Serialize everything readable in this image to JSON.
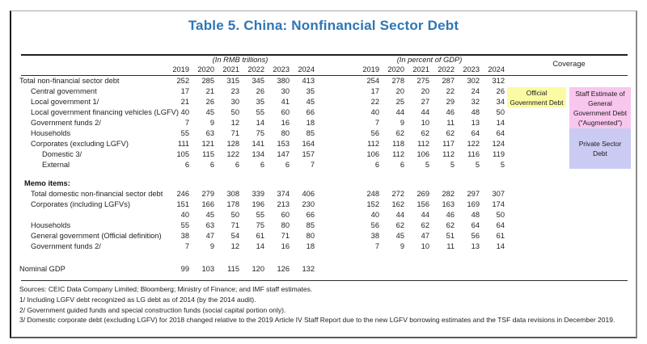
{
  "title": "Table 5. China: Nonfinancial Sector Debt",
  "header": {
    "group_rmb": "(In RMB trillions)",
    "group_gdp": "(In percent of GDP)",
    "coverage": "Coverage",
    "years": [
      "2019",
      "2020",
      "2021",
      "2022",
      "2023",
      "2024"
    ]
  },
  "main_rows": [
    {
      "label": "Total non-financial sector debt",
      "indent": 0,
      "rmb": [
        252,
        285,
        315,
        345,
        380,
        413
      ],
      "gdp": [
        254,
        278,
        275,
        287,
        302,
        312
      ]
    },
    {
      "label": "Central government",
      "indent": 1,
      "rmb": [
        17,
        21,
        23,
        26,
        30,
        35
      ],
      "gdp": [
        17,
        20,
        20,
        22,
        24,
        26
      ]
    },
    {
      "label": "Local government 1/",
      "indent": 1,
      "rmb": [
        21,
        26,
        30,
        35,
        41,
        45
      ],
      "gdp": [
        22,
        25,
        27,
        29,
        32,
        34
      ]
    },
    {
      "label": "Local government financing vehicles (LGFV)",
      "indent": 1,
      "rmb": [
        40,
        45,
        50,
        55,
        60,
        66
      ],
      "gdp": [
        40,
        44,
        44,
        46,
        48,
        50
      ]
    },
    {
      "label": "Government funds 2/",
      "indent": 1,
      "rmb": [
        7,
        9,
        12,
        14,
        16,
        18
      ],
      "gdp": [
        7,
        9,
        10,
        11,
        13,
        14
      ]
    },
    {
      "label": "Households",
      "indent": 1,
      "rmb": [
        55,
        63,
        71,
        75,
        80,
        85
      ],
      "gdp": [
        56,
        62,
        62,
        62,
        64,
        64
      ]
    },
    {
      "label": "Corporates (excluding LGFV)",
      "indent": 1,
      "rmb": [
        111,
        121,
        128,
        141,
        153,
        164
      ],
      "gdp": [
        112,
        118,
        112,
        117,
        122,
        124
      ]
    },
    {
      "label": "Domestic 3/",
      "indent": 2,
      "rmb": [
        105,
        115,
        122,
        134,
        147,
        157
      ],
      "gdp": [
        106,
        112,
        106,
        112,
        116,
        119
      ]
    },
    {
      "label": "External",
      "indent": 2,
      "rmb": [
        6,
        6,
        6,
        6,
        6,
        7
      ],
      "gdp": [
        6,
        6,
        5,
        5,
        5,
        5
      ]
    }
  ],
  "memo": {
    "header": "Memo items:",
    "rows": [
      {
        "label": "Total domestic non-financial sector debt",
        "indent": 1,
        "rmb": [
          246,
          279,
          308,
          339,
          374,
          406
        ],
        "gdp": [
          248,
          272,
          269,
          282,
          297,
          307
        ]
      },
      {
        "label": "Corporates (including LGFVs)",
        "indent": 1,
        "rmb": [
          151,
          166,
          178,
          196,
          213,
          230
        ],
        "gdp": [
          152,
          162,
          156,
          163,
          169,
          174
        ]
      },
      {
        "label": "",
        "indent": 1,
        "rmb": [
          40,
          45,
          50,
          55,
          60,
          66
        ],
        "gdp": [
          40,
          44,
          44,
          46,
          48,
          50
        ]
      },
      {
        "label": "Households",
        "indent": 1,
        "rmb": [
          55,
          63,
          71,
          75,
          80,
          85
        ],
        "gdp": [
          56,
          62,
          62,
          62,
          64,
          64
        ]
      },
      {
        "label": "General government (Official definition)",
        "indent": 1,
        "rmb": [
          38,
          47,
          54,
          61,
          71,
          80
        ],
        "gdp": [
          38,
          45,
          47,
          51,
          56,
          61
        ]
      },
      {
        "label": "Government funds 2/",
        "indent": 1,
        "rmb": [
          7,
          9,
          12,
          14,
          16,
          18
        ],
        "gdp": [
          7,
          9,
          10,
          11,
          13,
          14
        ]
      }
    ]
  },
  "gdp_row": {
    "label": "Nominal GDP",
    "indent": 0,
    "rmb": [
      99,
      103,
      115,
      120,
      126,
      132
    ],
    "gdp": []
  },
  "coverage_boxes": {
    "official": {
      "label": "Official Government Debt",
      "color": "#fbfba4"
    },
    "staff": {
      "label": "Staff Estimate of General Government Debt (\"Augmented\")",
      "color": "#f9c6ee"
    },
    "private": {
      "label": "Private Sector Debt",
      "color": "#cacaf2"
    }
  },
  "footnotes": [
    "Sources: CEIC Data Company Limited; Bloomberg; Ministry of Finance; and IMF staff estimates.",
    "1/ Including LGFV debt recognized as LG debt as of 2014 (by the 2014 audit).",
    "2/ Government guided funds and special construction funds (social capital portion only).",
    "3/ Domestic corporate debt (excluding LGFV) for 2018 changed relative to the 2019 Article IV Staff Report due to the new LGFV borrowing estimates and the TSF data revisions in December 2019."
  ]
}
